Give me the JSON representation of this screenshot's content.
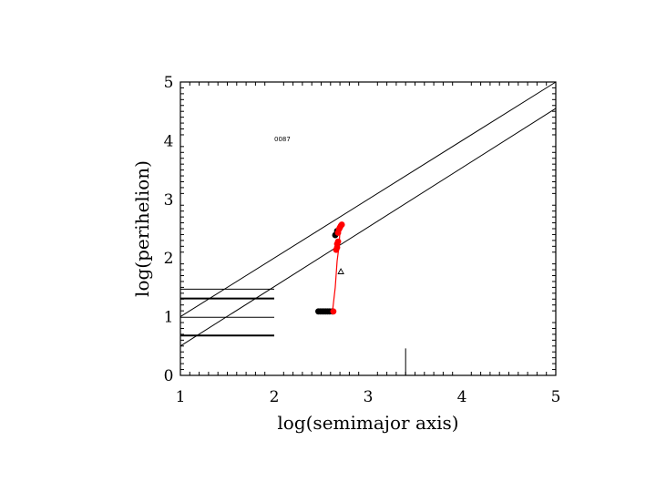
{
  "chart_data": {
    "type": "scatter",
    "title": "",
    "xlabel": "log(semimajor axis)",
    "ylabel": "log(perihelion)",
    "xlim": [
      1,
      5
    ],
    "ylim": [
      0,
      5
    ],
    "xticks": [
      "1",
      "2",
      "3",
      "4",
      "5"
    ],
    "yticks": [
      "0",
      "1",
      "2",
      "3",
      "4",
      "5"
    ],
    "grid": false,
    "legend": "none",
    "annotation": {
      "text": "0087",
      "x": 2.0,
      "y": 4.02
    },
    "reference_lines": [
      {
        "x": [
          1,
          5
        ],
        "y": [
          1.0,
          5.1
        ]
      },
      {
        "x": [
          1,
          5
        ],
        "y": [
          0.5,
          4.55
        ]
      }
    ],
    "horizontal_segments": [
      {
        "y": 1.47,
        "x": [
          1,
          2
        ],
        "weight": "thin"
      },
      {
        "y": 1.31,
        "x": [
          1,
          2
        ],
        "weight": "thick"
      },
      {
        "y": 0.99,
        "x": [
          1,
          2
        ],
        "weight": "thin"
      },
      {
        "y": 0.68,
        "x": [
          1,
          2
        ],
        "weight": "thick"
      }
    ],
    "vertical_segment": {
      "x": 3.4,
      "y": [
        0,
        0.46
      ]
    },
    "red_track": {
      "x": [
        2.62,
        2.65,
        2.67,
        2.69,
        2.7,
        2.71
      ],
      "y": [
        1.08,
        1.5,
        1.95,
        2.2,
        2.45,
        2.55
      ]
    },
    "series": [
      {
        "color": "#000000",
        "x": [
          2.47,
          2.49,
          2.51,
          2.53,
          2.55,
          2.57,
          2.59,
          2.62,
          2.65,
          2.67
        ],
        "y": [
          1.09,
          1.09,
          1.09,
          1.09,
          1.09,
          1.09,
          1.09,
          1.09,
          2.39,
          2.46
        ]
      },
      {
        "color": "#ff0000",
        "x": [
          2.63,
          2.66,
          2.67,
          2.67,
          2.68,
          2.68,
          2.69,
          2.7,
          2.71,
          2.72
        ],
        "y": [
          1.09,
          2.14,
          2.18,
          2.24,
          2.28,
          2.43,
          2.49,
          2.52,
          2.55,
          2.57
        ]
      }
    ],
    "open_marker": {
      "x": 2.71,
      "y": 1.77,
      "symbol": "triangle"
    }
  }
}
